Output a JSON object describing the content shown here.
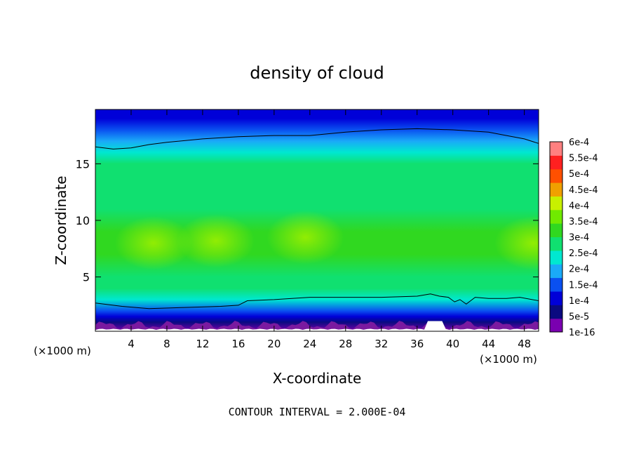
{
  "chart_data": {
    "type": "heatmap",
    "title": "density of cloud",
    "xlabel": "X-coordinate",
    "ylabel": "Z-coordinate",
    "x_unit": "(×1000 m)",
    "x_unit_right": "(×1000 m)",
    "footer": "CONTOUR INTERVAL = 2.000E-04",
    "xlim": [
      0,
      49.6
    ],
    "ylim": [
      0.2,
      19.8
    ],
    "x_ticks": [
      4,
      8,
      12,
      16,
      20,
      24,
      28,
      32,
      36,
      40,
      44,
      48
    ],
    "y_ticks": [
      5,
      10,
      15
    ],
    "x_tick_labels": [
      "4",
      "8",
      "12",
      "16",
      "20",
      "24",
      "28",
      "32",
      "36",
      "40",
      "44",
      "48"
    ],
    "y_tick_labels": [
      "5",
      "10",
      "15"
    ],
    "colorbar": {
      "levels": [
        "1e-16",
        "5e-5",
        "1e-4",
        "1.5e-4",
        "2e-4",
        "2.5e-4",
        "3e-4",
        "3.5e-4",
        "4e-4",
        "4.5e-4",
        "5e-4",
        "5.5e-4",
        "6e-4"
      ],
      "colors": [
        "#7a00b0",
        "#0a0a80",
        "#0000d8",
        "#0a50f0",
        "#1aaaf8",
        "#00e8d0",
        "#10e070",
        "#30d820",
        "#70ea00",
        "#c8f000",
        "#f0a000",
        "#ff5000",
        "#ff2020",
        "#ff8080"
      ]
    },
    "profile_z": [
      0.2,
      1.0,
      1.5,
      2.0,
      3.0,
      4.0,
      5.0,
      7.0,
      9.0,
      11.0,
      13.0,
      15.0,
      16.0,
      17.0,
      18.0,
      19.0,
      19.8
    ],
    "profile_density": [
      5e-06,
      5e-05,
      0.0001,
      0.00015,
      0.00025,
      0.0003,
      0.00033,
      0.00035,
      0.00035,
      0.00034,
      0.00032,
      0.0003,
      0.00027,
      0.0002,
      0.00016,
      0.00012,
      0.0001
    ],
    "contour_2e-4_upper": {
      "x": [
        0,
        2,
        4,
        6,
        8,
        12,
        16,
        20,
        24,
        28,
        32,
        36,
        40,
        44,
        46,
        48,
        49.6
      ],
      "z": [
        16.5,
        16.3,
        16.4,
        16.7,
        16.9,
        17.2,
        17.4,
        17.5,
        17.5,
        17.8,
        18.0,
        18.1,
        18.0,
        17.8,
        17.5,
        17.2,
        16.8
      ]
    },
    "contour_2e-4_lower": {
      "x": [
        0,
        3,
        6,
        10,
        14,
        16,
        17,
        20,
        24,
        28,
        32,
        36,
        37.5,
        38.5,
        39.5,
        40.2,
        40.8,
        41.5,
        42.5,
        44,
        46,
        47.5,
        49.6
      ],
      "z": [
        2.7,
        2.4,
        2.2,
        2.3,
        2.4,
        2.5,
        2.9,
        3.0,
        3.2,
        3.2,
        3.2,
        3.3,
        3.5,
        3.3,
        3.2,
        2.8,
        3.0,
        2.6,
        3.2,
        3.1,
        3.1,
        3.2,
        2.9
      ]
    },
    "maxima": [
      {
        "x": 6.5,
        "z": 8.0,
        "density": 0.00038
      },
      {
        "x": 13.5,
        "z": 8.2,
        "density": 0.00036
      },
      {
        "x": 23.5,
        "z": 8.5,
        "density": 0.00036
      },
      {
        "x": 49.0,
        "z": 8.0,
        "density": 0.00038
      }
    ]
  }
}
